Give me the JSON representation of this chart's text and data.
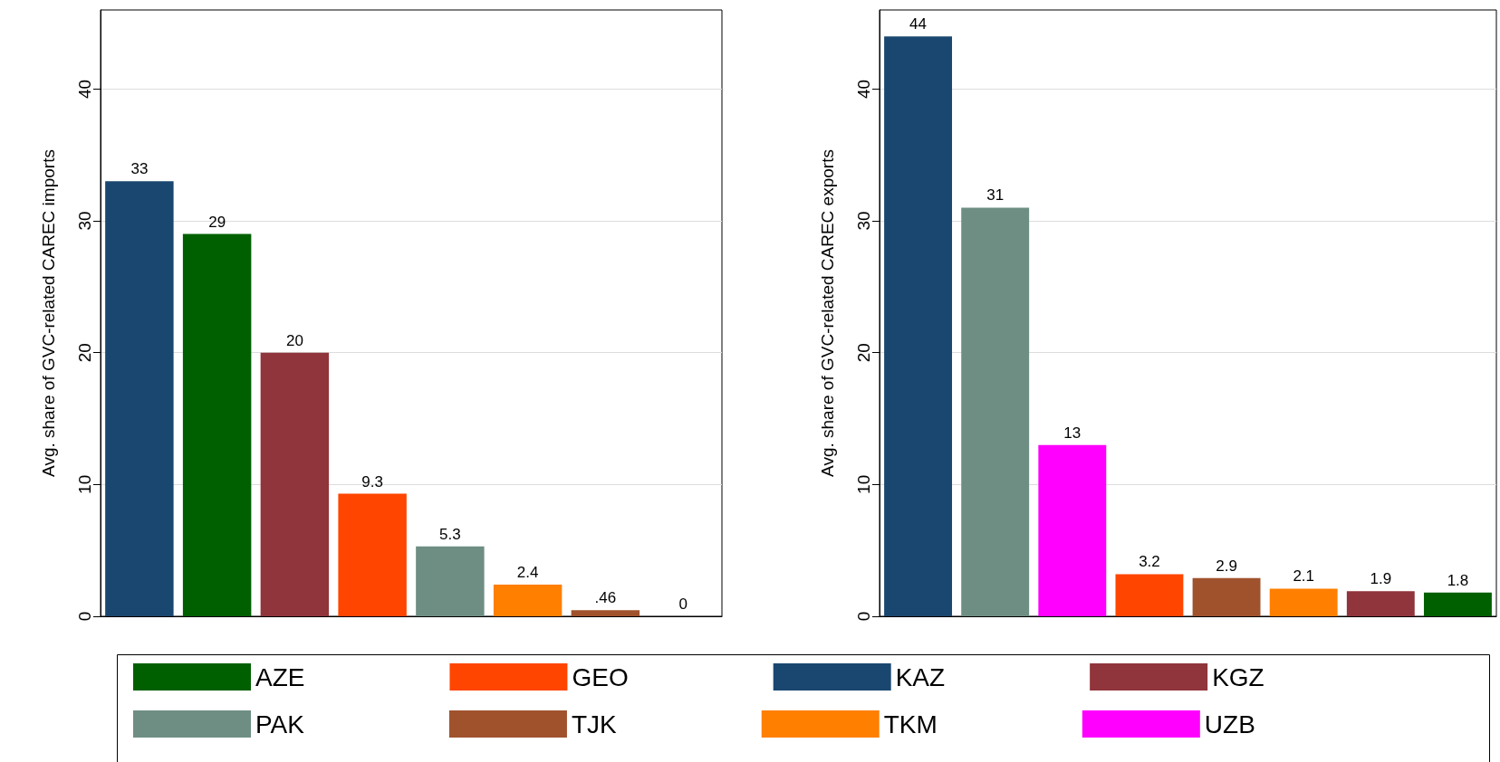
{
  "chart_data": [
    {
      "type": "bar",
      "ylabel": "Avg. share of GVC-related CAREC imports",
      "categories": [
        null,
        null,
        null,
        null,
        null,
        null,
        null,
        null
      ],
      "ylim": [
        0,
        46
      ],
      "yticks": [
        0,
        10,
        20,
        30,
        40
      ],
      "grid": "y",
      "tick_labels": "y",
      "legend": "bottom",
      "series": [
        {
          "name": "AZE",
          "color": "#006000",
          "values": [
            null,
            29,
            null,
            null,
            null,
            null,
            null,
            null
          ],
          "value_labels": [
            null,
            "29",
            null,
            null,
            null,
            null,
            null,
            null
          ]
        },
        {
          "name": "GEO",
          "color": "#ff4500",
          "values": [
            null,
            null,
            null,
            9.3,
            null,
            null,
            null,
            null
          ],
          "value_labels": [
            null,
            null,
            null,
            "9.3",
            null,
            null,
            null,
            null
          ]
        },
        {
          "name": "KAZ",
          "color": "#1a476f",
          "values": [
            33,
            null,
            null,
            null,
            null,
            null,
            null,
            null
          ],
          "value_labels": [
            "33",
            null,
            null,
            null,
            null,
            null,
            null,
            null
          ]
        },
        {
          "name": "KGZ",
          "color": "#90353b",
          "values": [
            null,
            null,
            20,
            null,
            null,
            null,
            null,
            null
          ],
          "value_labels": [
            null,
            null,
            "20",
            null,
            null,
            null,
            null,
            null
          ]
        },
        {
          "name": "PAK",
          "color": "#6e8e84",
          "values": [
            null,
            null,
            null,
            null,
            5.3,
            null,
            null,
            null
          ],
          "value_labels": [
            null,
            null,
            null,
            null,
            "5.3",
            null,
            null,
            null
          ]
        },
        {
          "name": "TJK",
          "color": "#a0522d",
          "values": [
            null,
            null,
            null,
            null,
            null,
            null,
            0.46,
            null
          ],
          "value_labels": [
            null,
            null,
            null,
            null,
            null,
            null,
            ".46",
            null
          ]
        },
        {
          "name": "TKM",
          "color": "#ff7f00",
          "values": [
            null,
            null,
            null,
            null,
            null,
            2.4,
            null,
            null
          ],
          "value_labels": [
            null,
            null,
            null,
            null,
            null,
            "2.4",
            null,
            null
          ]
        },
        {
          "name": "UZB",
          "color": "#ff00ff",
          "values": [
            null,
            null,
            null,
            null,
            null,
            null,
            null,
            0
          ],
          "value_labels": [
            null,
            null,
            null,
            null,
            null,
            null,
            null,
            "0"
          ]
        }
      ]
    },
    {
      "type": "bar",
      "ylabel": "Avg. share of GVC-related CAREC exports",
      "categories": [
        null,
        null,
        null,
        null,
        null,
        null,
        null,
        null
      ],
      "ylim": [
        0,
        46
      ],
      "yticks": [
        0,
        10,
        20,
        30,
        40
      ],
      "grid": "y",
      "tick_labels": "y",
      "series": [
        {
          "color": "#006000",
          "values": [
            null,
            null,
            null,
            null,
            null,
            null,
            null,
            1.8
          ],
          "value_labels": [
            null,
            null,
            null,
            null,
            null,
            null,
            null,
            "1.8"
          ]
        },
        {
          "color": "#ff4500",
          "values": [
            null,
            null,
            null,
            3.2,
            null,
            null,
            null,
            null
          ],
          "value_labels": [
            null,
            null,
            null,
            "3.2",
            null,
            null,
            null,
            null
          ]
        },
        {
          "color": "#1a476f",
          "values": [
            44,
            null,
            null,
            null,
            null,
            null,
            null,
            null
          ],
          "value_labels": [
            "44",
            null,
            null,
            null,
            null,
            null,
            null,
            null
          ]
        },
        {
          "color": "#90353b",
          "values": [
            null,
            null,
            null,
            null,
            null,
            null,
            1.9,
            null
          ],
          "value_labels": [
            null,
            null,
            null,
            null,
            null,
            null,
            "1.9",
            null
          ]
        },
        {
          "color": "#6e8e84",
          "values": [
            null,
            31,
            null,
            null,
            null,
            null,
            null,
            null
          ],
          "value_labels": [
            null,
            "31",
            null,
            null,
            null,
            null,
            null,
            null
          ]
        },
        {
          "color": "#a0522d",
          "values": [
            null,
            null,
            null,
            null,
            2.9,
            null,
            null,
            null
          ],
          "value_labels": [
            null,
            null,
            null,
            null,
            "2.9",
            null,
            null,
            null
          ]
        },
        {
          "color": "#ff7f00",
          "values": [
            null,
            null,
            null,
            null,
            null,
            2.1,
            null,
            null
          ],
          "value_labels": [
            null,
            null,
            null,
            null,
            null,
            "2.1",
            null,
            null
          ]
        },
        {
          "color": "#ff00ff",
          "values": [
            null,
            null,
            13,
            null,
            null,
            null,
            null,
            null
          ],
          "value_labels": [
            null,
            null,
            "13",
            null,
            null,
            null,
            null,
            null
          ]
        }
      ]
    }
  ]
}
